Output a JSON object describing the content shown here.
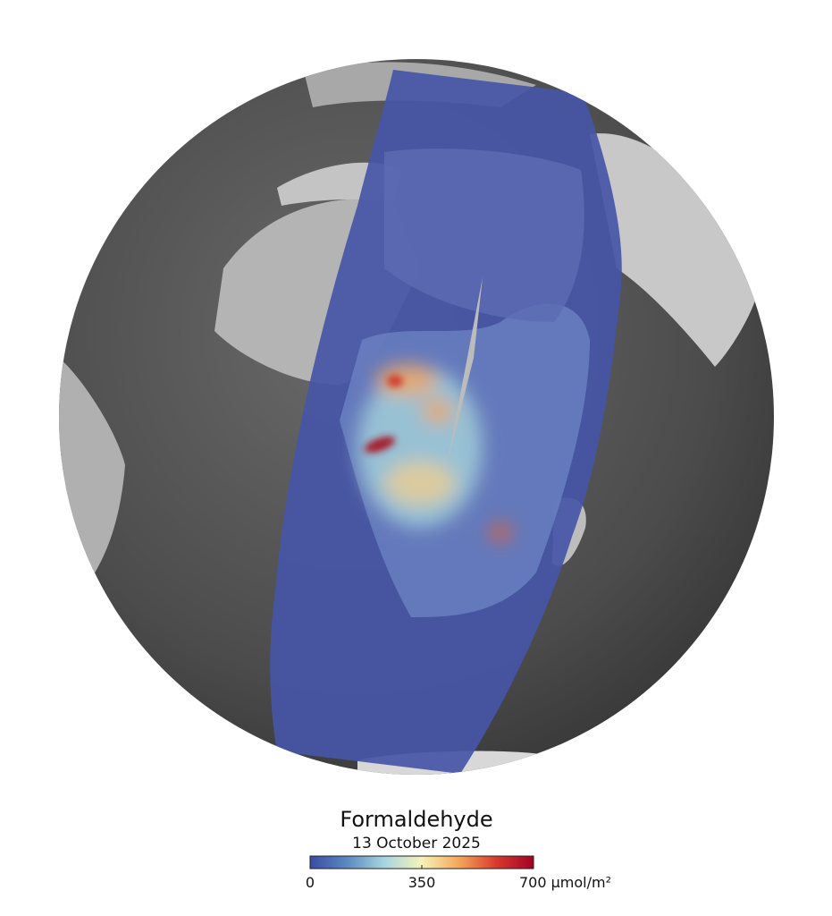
{
  "title": "Formaldehyde",
  "date": "13 October 2025",
  "colorbar": {
    "range": [
      0,
      700
    ],
    "ticks": [
      0,
      350,
      {
        "value": 700,
        "label": "700 μmol/m²"
      }
    ],
    "colors": [
      "#3a4ba3",
      "#5b8ac0",
      "#a7d6e0",
      "#f6f3b8",
      "#f5a65a",
      "#d73a2c",
      "#a50026"
    ]
  }
}
